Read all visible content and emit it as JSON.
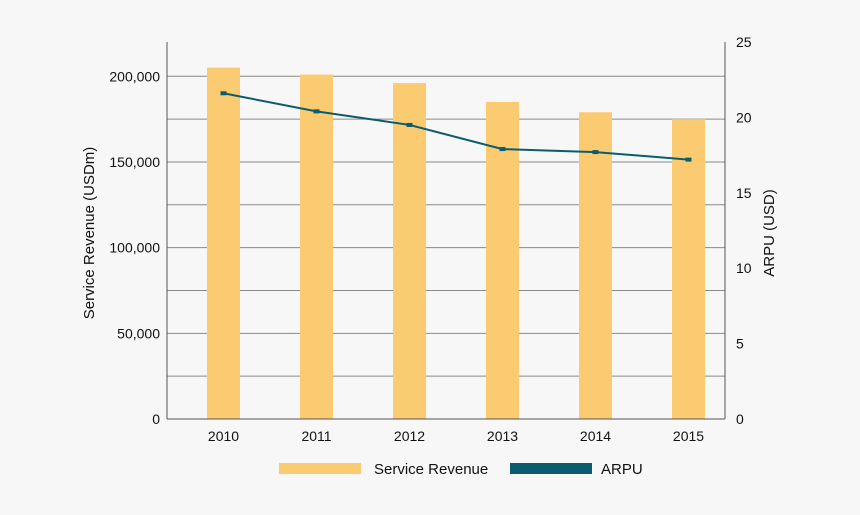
{
  "chart_data": {
    "type": "bar",
    "title": "",
    "xlabel": "",
    "categories": [
      "2010",
      "2011",
      "2012",
      "2013",
      "2014",
      "2015"
    ],
    "y_left": {
      "label": "Service Revenue (USDm)",
      "ylim": [
        0,
        220000
      ],
      "ticks": [
        0,
        50000,
        100000,
        150000,
        200000
      ],
      "tick_labels": [
        "0",
        "50,000",
        "100,000",
        "150,000",
        "200,000"
      ]
    },
    "y_right": {
      "label": "ARPU (USD)",
      "ylim": [
        0,
        25
      ],
      "ticks": [
        0,
        5,
        10,
        15,
        20,
        25
      ],
      "tick_labels": [
        "0",
        "5",
        "10",
        "15",
        "20",
        "25"
      ]
    },
    "series": [
      {
        "name": "Service Revenue",
        "type": "bar",
        "axis": "left",
        "color": "#fbcb72",
        "values": [
          205000,
          201000,
          196000,
          185000,
          179000,
          175000
        ]
      },
      {
        "name": "ARPU",
        "type": "line",
        "axis": "right",
        "color": "#0b5c6f",
        "values": [
          21.6,
          20.4,
          19.5,
          17.9,
          17.7,
          17.2
        ]
      }
    ],
    "grid": true,
    "legend": "bottom-center"
  }
}
